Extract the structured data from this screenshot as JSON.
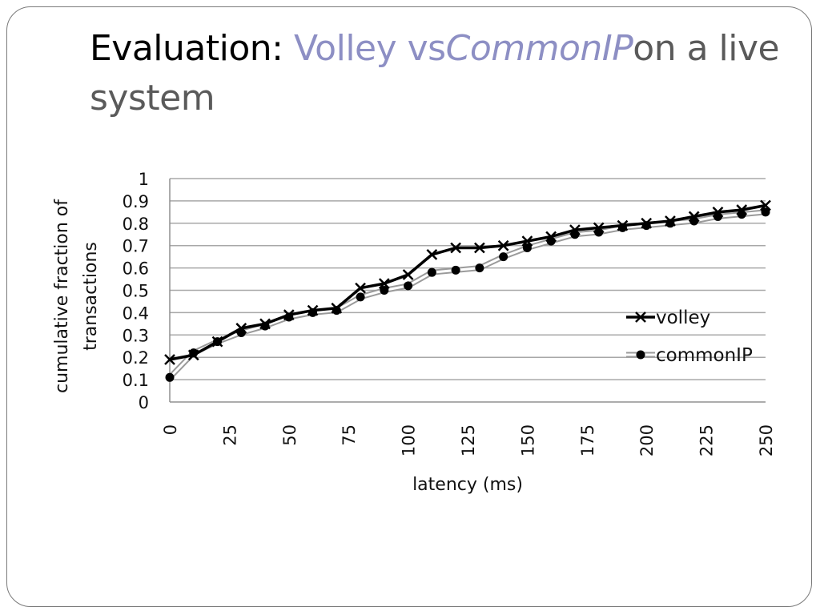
{
  "slide": {
    "title_part1": "Evaluation: ",
    "title_accent": "Volley vs",
    "title_italic": "CommonIP",
    "title_rest": "on a live system"
  },
  "chart_data": {
    "type": "line",
    "xlabel": "latency (ms)",
    "ylabel_line1": "cumulative fraction of",
    "ylabel_line2": "transactions",
    "xlim": [
      0,
      250
    ],
    "ylim": [
      0,
      1
    ],
    "xticks": [
      "0",
      "25",
      "50",
      "75",
      "100",
      "125",
      "150",
      "175",
      "200",
      "225",
      "250"
    ],
    "yticks": [
      "0",
      "0.1",
      "0.2",
      "0.3",
      "0.4",
      "0.5",
      "0.6",
      "0.7",
      "0.8",
      "0.9",
      "1"
    ],
    "grid": true,
    "legend_position": "right",
    "x": [
      0,
      10,
      20,
      30,
      40,
      50,
      60,
      70,
      80,
      90,
      100,
      110,
      120,
      130,
      140,
      150,
      160,
      170,
      180,
      190,
      200,
      210,
      220,
      230,
      240,
      250
    ],
    "series": [
      {
        "name": "volley",
        "marker": "x",
        "color": "#000000",
        "values": [
          0.19,
          0.21,
          0.27,
          0.33,
          0.35,
          0.39,
          0.41,
          0.42,
          0.51,
          0.53,
          0.57,
          0.66,
          0.69,
          0.69,
          0.7,
          0.72,
          0.74,
          0.77,
          0.78,
          0.79,
          0.8,
          0.81,
          0.83,
          0.85,
          0.86,
          0.88
        ]
      },
      {
        "name": "commonIP",
        "marker": "circle",
        "color": "#000000",
        "outline_color": "#9a9a9a",
        "values": [
          0.11,
          0.22,
          0.27,
          0.31,
          0.34,
          0.38,
          0.4,
          0.41,
          0.47,
          0.5,
          0.52,
          0.58,
          0.59,
          0.6,
          0.65,
          0.69,
          0.72,
          0.75,
          0.76,
          0.78,
          0.79,
          0.8,
          0.81,
          0.83,
          0.84,
          0.85
        ]
      }
    ]
  }
}
